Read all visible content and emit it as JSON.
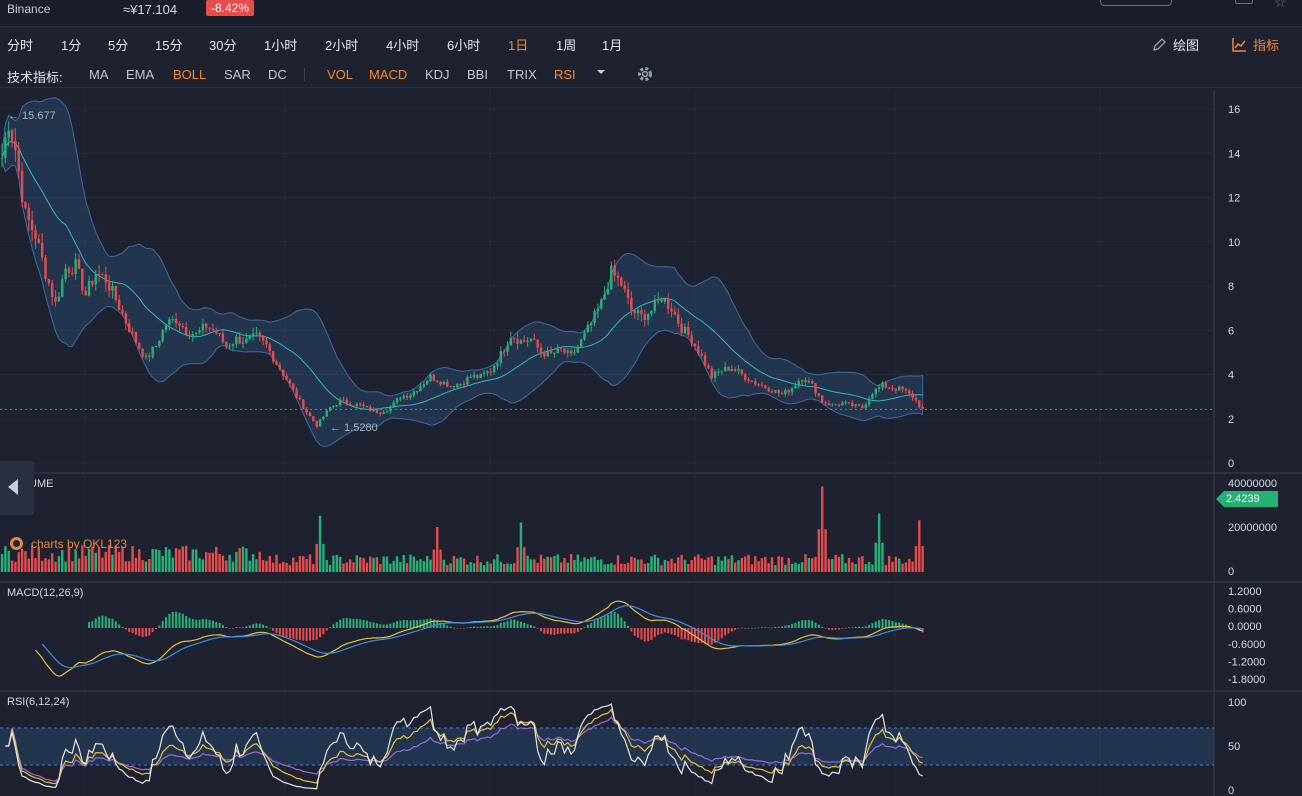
{
  "ticker": {
    "exchange": "Binance",
    "price": "≈¥17.104",
    "change": "-8.42%"
  },
  "periods": [
    "分时",
    "1分",
    "5分",
    "15分",
    "30分",
    "1小时",
    "2小时",
    "4小时",
    "6小时",
    "1日",
    "1周",
    "1月"
  ],
  "active_period": "1日",
  "toolbar": {
    "draw_label": "绘图",
    "indicator_label": "指标",
    "draw_icon": "pencil-icon",
    "indicator_icon": "line-chart-icon"
  },
  "indicators": {
    "title": "技术指标:",
    "main": [
      "MA",
      "EMA",
      "BOLL",
      "SAR",
      "DC"
    ],
    "sub": [
      "VOL",
      "MACD",
      "KDJ",
      "BBI",
      "TRIX",
      "RSI"
    ],
    "active": [
      "BOLL",
      "VOL",
      "MACD",
      "RSI"
    ],
    "more_icon": "dropdown-caret-icon",
    "settings_icon": "gear-icon"
  },
  "colors": {
    "up": "#26b076",
    "down": "#e84b4b",
    "accent": "#f08a2a",
    "boll_mid": "#2fb7c4",
    "macd_dif": "#e8c13a",
    "macd_dea": "#3a8fe8",
    "rsi_6": "#e8e8e8",
    "rsi_12": "#e8c13a",
    "rsi_24": "#9a6ae0"
  },
  "price_axis": {
    "ticks": [
      "16",
      "14",
      "12",
      "10",
      "8",
      "6",
      "4",
      "2",
      "0"
    ],
    "current_price": "2.4239",
    "high_label": "← 15.677",
    "low_label": "← 1.5280"
  },
  "watermark": "charts by QKL123",
  "volume": {
    "label": "VOLUME",
    "ticks": [
      "40000000",
      "20000000",
      "0"
    ]
  },
  "macd": {
    "label": "MACD(12,26,9)",
    "ticks": [
      "1.2000",
      "0.6000",
      "0.0000",
      "-0.6000",
      "-1.2000",
      "-1.8000"
    ]
  },
  "rsi": {
    "label": "RSI(6,12,24)",
    "ticks": [
      "100",
      "50",
      "0"
    ]
  },
  "chart_data": {
    "type": "candlestick",
    "y_range": [
      0,
      16.5
    ],
    "high": 15.677,
    "low": 1.528,
    "last": 2.4239,
    "price_path": [
      [
        0,
        13.8
      ],
      [
        2,
        15.5
      ],
      [
        4,
        14.2
      ],
      [
        7,
        11.2
      ],
      [
        10,
        10.3
      ],
      [
        13,
        8.6
      ],
      [
        16,
        7.2
      ],
      [
        19,
        8.8
      ],
      [
        22,
        8.9
      ],
      [
        25,
        7.6
      ],
      [
        28,
        8.6
      ],
      [
        31,
        8.3
      ],
      [
        34,
        7.4
      ],
      [
        37,
        6.4
      ],
      [
        40,
        5.5
      ],
      [
        43,
        4.7
      ],
      [
        46,
        5.3
      ],
      [
        49,
        6.3
      ],
      [
        52,
        6.5
      ],
      [
        55,
        6.0
      ],
      [
        58,
        5.8
      ],
      [
        61,
        6.2
      ],
      [
        64,
        5.9
      ],
      [
        67,
        5.3
      ],
      [
        70,
        5.6
      ],
      [
        73,
        5.5
      ],
      [
        76,
        5.7
      ],
      [
        79,
        5.3
      ],
      [
        82,
        4.5
      ],
      [
        85,
        3.8
      ],
      [
        88,
        3.0
      ],
      [
        91,
        2.3
      ],
      [
        94,
        1.7
      ],
      [
        96,
        2.1
      ],
      [
        98,
        2.5
      ],
      [
        101,
        2.8
      ],
      [
        104,
        2.7
      ],
      [
        107,
        2.6
      ],
      [
        110,
        2.4
      ],
      [
        113,
        2.3
      ],
      [
        116,
        2.5
      ],
      [
        119,
        3.0
      ],
      [
        122,
        3.1
      ],
      [
        125,
        3.5
      ],
      [
        128,
        3.9
      ],
      [
        131,
        3.7
      ],
      [
        134,
        3.5
      ],
      [
        137,
        3.6
      ],
      [
        140,
        3.9
      ],
      [
        143,
        3.9
      ],
      [
        146,
        4.2
      ],
      [
        149,
        4.9
      ],
      [
        152,
        5.8
      ],
      [
        155,
        5.5
      ],
      [
        158,
        5.6
      ],
      [
        161,
        5.0
      ],
      [
        164,
        4.9
      ],
      [
        167,
        5.1
      ],
      [
        170,
        4.8
      ],
      [
        173,
        5.5
      ],
      [
        176,
        6.3
      ],
      [
        179,
        7.2
      ],
      [
        182,
        8.6
      ],
      [
        185,
        8.1
      ],
      [
        188,
        6.9
      ],
      [
        191,
        6.6
      ],
      [
        194,
        6.9
      ],
      [
        197,
        7.5
      ],
      [
        200,
        7.0
      ],
      [
        203,
        6.1
      ],
      [
        206,
        5.6
      ],
      [
        209,
        4.8
      ],
      [
        212,
        3.9
      ],
      [
        215,
        4.2
      ],
      [
        218,
        4.3
      ],
      [
        221,
        4.0
      ],
      [
        224,
        3.7
      ],
      [
        227,
        3.5
      ],
      [
        230,
        3.3
      ],
      [
        233,
        3.1
      ],
      [
        236,
        3.4
      ],
      [
        239,
        3.9
      ],
      [
        242,
        3.5
      ],
      [
        245,
        2.8
      ],
      [
        248,
        2.6
      ],
      [
        251,
        2.7
      ],
      [
        254,
        2.6
      ],
      [
        257,
        2.5
      ],
      [
        260,
        3.2
      ],
      [
        263,
        3.5
      ],
      [
        266,
        3.4
      ],
      [
        269,
        3.3
      ],
      [
        272,
        3.0
      ],
      [
        275,
        2.42
      ]
    ],
    "volume_peaks": [
      [
        95,
        25000000
      ],
      [
        130,
        20000000
      ],
      [
        155,
        22000000
      ],
      [
        245,
        38000000
      ],
      [
        262,
        26000000
      ],
      [
        274,
        23000000
      ]
    ],
    "volume_range": [
      0,
      40000000
    ],
    "macd_range": [
      -1.8,
      1.2
    ],
    "rsi_range": [
      0,
      100
    ],
    "rsi_bands": [
      70,
      30
    ]
  }
}
